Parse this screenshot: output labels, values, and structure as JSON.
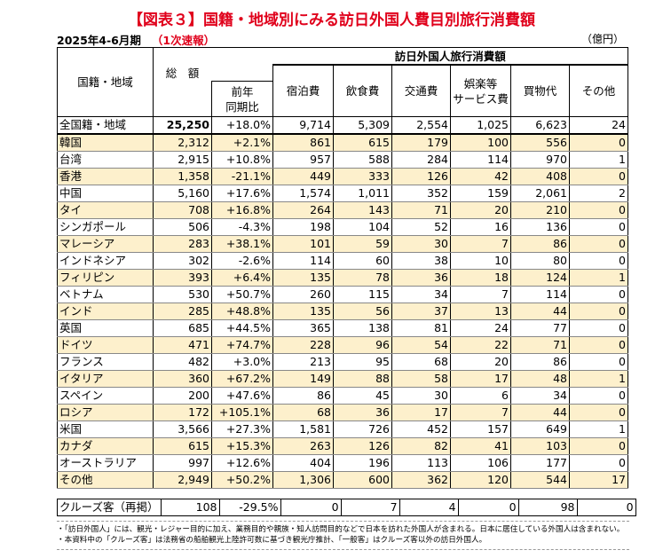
{
  "title": "【図表３】国籍・地域別にみる訪日外国人費目別旅行消費額",
  "period": "2025年4-6月期",
  "period_note": "（1次速報）",
  "unit": "（億円）",
  "headers": {
    "region": "国籍・地域",
    "total": "総　額",
    "group": "訪日外国人旅行消費額",
    "yoy_line1": "前年",
    "yoy_line2": "同期比",
    "lodging": "宿泊費",
    "food": "飲食費",
    "transport": "交通費",
    "entertainment_line1": "娯楽等",
    "entertainment_line2": "サービス費",
    "shopping": "買物代",
    "other": "その他"
  },
  "total_row": [
    "全国籍・地域",
    "25,250",
    "+18.0%",
    "9,714",
    "5,309",
    "2,554",
    "1,025",
    "6,623",
    "24"
  ],
  "rows": [
    [
      "韓国",
      "2,312",
      "+2.1%",
      "861",
      "615",
      "179",
      "100",
      "556",
      "0"
    ],
    [
      "台湾",
      "2,915",
      "+10.8%",
      "957",
      "588",
      "284",
      "114",
      "970",
      "1"
    ],
    [
      "香港",
      "1,358",
      "-21.1%",
      "449",
      "333",
      "126",
      "42",
      "408",
      "0"
    ],
    [
      "中国",
      "5,160",
      "+17.6%",
      "1,574",
      "1,011",
      "352",
      "159",
      "2,061",
      "2"
    ],
    [
      "タイ",
      "708",
      "+16.8%",
      "264",
      "143",
      "71",
      "20",
      "210",
      "0"
    ],
    [
      "シンガポール",
      "506",
      "-4.3%",
      "198",
      "104",
      "52",
      "16",
      "136",
      "0"
    ],
    [
      "マレーシア",
      "283",
      "+38.1%",
      "101",
      "59",
      "30",
      "7",
      "86",
      "0"
    ],
    [
      "インドネシア",
      "302",
      "-2.6%",
      "114",
      "60",
      "38",
      "10",
      "80",
      "0"
    ],
    [
      "フィリピン",
      "393",
      "+6.4%",
      "135",
      "78",
      "36",
      "18",
      "124",
      "1"
    ],
    [
      "ベトナム",
      "530",
      "+50.7%",
      "260",
      "115",
      "34",
      "7",
      "114",
      "0"
    ],
    [
      "インド",
      "285",
      "+48.8%",
      "135",
      "56",
      "37",
      "13",
      "44",
      "0"
    ],
    [
      "英国",
      "685",
      "+44.5%",
      "365",
      "138",
      "81",
      "24",
      "77",
      "0"
    ],
    [
      "ドイツ",
      "471",
      "+74.7%",
      "228",
      "96",
      "54",
      "22",
      "71",
      "0"
    ],
    [
      "フランス",
      "482",
      "+3.0%",
      "213",
      "95",
      "68",
      "20",
      "86",
      "0"
    ],
    [
      "イタリア",
      "360",
      "+67.2%",
      "149",
      "88",
      "58",
      "17",
      "48",
      "1"
    ],
    [
      "スペイン",
      "200",
      "+47.6%",
      "86",
      "45",
      "30",
      "6",
      "34",
      "0"
    ],
    [
      "ロシア",
      "172",
      "+105.1%",
      "68",
      "36",
      "17",
      "7",
      "44",
      "0"
    ],
    [
      "米国",
      "3,566",
      "+27.3%",
      "1,581",
      "726",
      "452",
      "157",
      "649",
      "1"
    ],
    [
      "カナダ",
      "615",
      "+15.3%",
      "263",
      "126",
      "82",
      "41",
      "103",
      "0"
    ],
    [
      "オーストラリア",
      "997",
      "+12.6%",
      "404",
      "196",
      "113",
      "106",
      "177",
      "0"
    ],
    [
      "その他",
      "2,949",
      "+50.2%",
      "1,306",
      "600",
      "362",
      "120",
      "544",
      "17"
    ]
  ],
  "cruise_row": [
    "クルーズ客（再掲）",
    "108",
    "-29.5%",
    "0",
    "7",
    "4",
    "0",
    "98",
    "0"
  ],
  "notes": [
    "・「訪日外国人」には、観光・レジャー目的に加え、業務目的や親族・知人訪問目的などで日本を訪れた外国人が含まれる。日本に居住している外国人は含まれない。",
    "・本資料中の「クルーズ客」は法務省の船舶観光上陸許可数に基づき観光庁推計、「一般客」はクルーズ客以外の訪日外国人。"
  ],
  "colors": {
    "accent": "#e0001b",
    "shade": "#fdf0cc"
  }
}
